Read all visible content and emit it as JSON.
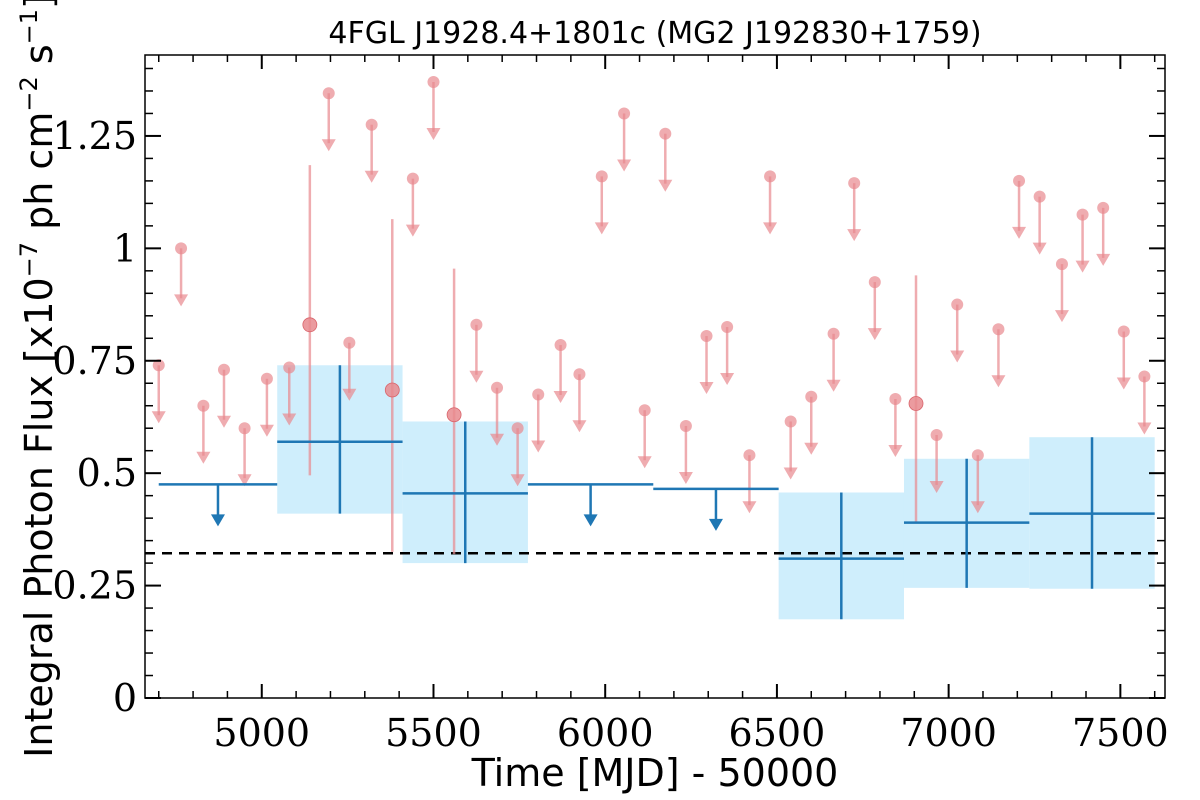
{
  "chart_data": {
    "type": "scatter",
    "title": "4FGL J1928.4+1801c (MG2 J192830+1759)",
    "xlabel": "Time [MJD] - 50000",
    "ylabel": {
      "main": "Integral Photon Flux [x10",
      "exp1": "−7",
      "mid": " ph cm",
      "exp2": "−2",
      "s": " s",
      "exp3": "−1",
      "close": "]"
    },
    "xlim": [
      4660,
      7630
    ],
    "ylim": [
      0,
      1.43
    ],
    "xticks": [
      5000,
      5500,
      6000,
      6500,
      7000,
      7500
    ],
    "xtick_labels": [
      "5000",
      "5500",
      "6000",
      "6500",
      "7000",
      "7500"
    ],
    "yticks": [
      0,
      0.25,
      0.5,
      0.75,
      1,
      1.25
    ],
    "ytick_labels": [
      "0",
      "0.25",
      "0.5",
      "0.75",
      "1",
      "1.25"
    ],
    "reference_line": {
      "y": 0.322,
      "style": "dashed"
    },
    "colors": {
      "fine": "#e8898e",
      "coarse": "#1f77b4",
      "band": "#cfeefc",
      "ref": "#000000"
    },
    "series": [
      {
        "kind": "coarse_bins",
        "points": [
          {
            "x0": 4700,
            "x1": 5045,
            "y": 0.475,
            "upper_limit": true
          },
          {
            "x0": 5045,
            "x1": 5410,
            "y": 0.57,
            "ylo": 0.41,
            "yhi": 0.74
          },
          {
            "x0": 5410,
            "x1": 5775,
            "y": 0.455,
            "ylo": 0.3,
            "yhi": 0.615
          },
          {
            "x0": 5775,
            "x1": 6140,
            "y": 0.475,
            "upper_limit": true
          },
          {
            "x0": 6140,
            "x1": 6505,
            "y": 0.465,
            "upper_limit": true
          },
          {
            "x0": 6505,
            "x1": 6870,
            "y": 0.31,
            "ylo": 0.175,
            "yhi": 0.457
          },
          {
            "x0": 6870,
            "x1": 7235,
            "y": 0.39,
            "ylo": 0.245,
            "yhi": 0.532
          },
          {
            "x0": 7235,
            "x1": 7600,
            "y": 0.41,
            "ylo": 0.243,
            "yhi": 0.58
          }
        ]
      },
      {
        "kind": "fine_bins",
        "upper_limits": [
          {
            "x": 4700,
            "y": 0.74
          },
          {
            "x": 4765,
            "y": 1.0
          },
          {
            "x": 4830,
            "y": 0.65
          },
          {
            "x": 4890,
            "y": 0.73
          },
          {
            "x": 4950,
            "y": 0.6
          },
          {
            "x": 5015,
            "y": 0.71
          },
          {
            "x": 5080,
            "y": 0.735
          },
          {
            "x": 5195,
            "y": 1.345
          },
          {
            "x": 5255,
            "y": 0.79
          },
          {
            "x": 5320,
            "y": 1.275
          },
          {
            "x": 5440,
            "y": 1.155
          },
          {
            "x": 5500,
            "y": 1.37
          },
          {
            "x": 5625,
            "y": 0.83
          },
          {
            "x": 5685,
            "y": 0.69
          },
          {
            "x": 5745,
            "y": 0.6
          },
          {
            "x": 5805,
            "y": 0.675
          },
          {
            "x": 5870,
            "y": 0.785
          },
          {
            "x": 5925,
            "y": 0.72
          },
          {
            "x": 5990,
            "y": 1.16
          },
          {
            "x": 6055,
            "y": 1.3
          },
          {
            "x": 6115,
            "y": 0.64
          },
          {
            "x": 6175,
            "y": 1.255
          },
          {
            "x": 6235,
            "y": 0.605
          },
          {
            "x": 6295,
            "y": 0.805
          },
          {
            "x": 6355,
            "y": 0.825
          },
          {
            "x": 6420,
            "y": 0.54
          },
          {
            "x": 6480,
            "y": 1.16
          },
          {
            "x": 6540,
            "y": 0.615
          },
          {
            "x": 6600,
            "y": 0.67
          },
          {
            "x": 6665,
            "y": 0.81
          },
          {
            "x": 6725,
            "y": 1.145
          },
          {
            "x": 6785,
            "y": 0.925
          },
          {
            "x": 6845,
            "y": 0.665
          },
          {
            "x": 6965,
            "y": 0.585
          },
          {
            "x": 7025,
            "y": 0.875
          },
          {
            "x": 7085,
            "y": 0.54
          },
          {
            "x": 7145,
            "y": 0.82
          },
          {
            "x": 7205,
            "y": 1.15
          },
          {
            "x": 7265,
            "y": 1.115
          },
          {
            "x": 7330,
            "y": 0.965
          },
          {
            "x": 7390,
            "y": 1.075
          },
          {
            "x": 7450,
            "y": 1.09
          },
          {
            "x": 7510,
            "y": 0.815
          },
          {
            "x": 7570,
            "y": 0.715
          }
        ],
        "detections": [
          {
            "x": 5140,
            "y": 0.83,
            "ylo": 0.495,
            "yhi": 1.185
          },
          {
            "x": 5380,
            "y": 0.685,
            "ylo": 0.325,
            "yhi": 1.065
          },
          {
            "x": 5560,
            "y": 0.63,
            "ylo": 0.32,
            "yhi": 0.955
          },
          {
            "x": 6905,
            "y": 0.655,
            "ylo": 0.39,
            "yhi": 0.94
          }
        ]
      }
    ]
  }
}
